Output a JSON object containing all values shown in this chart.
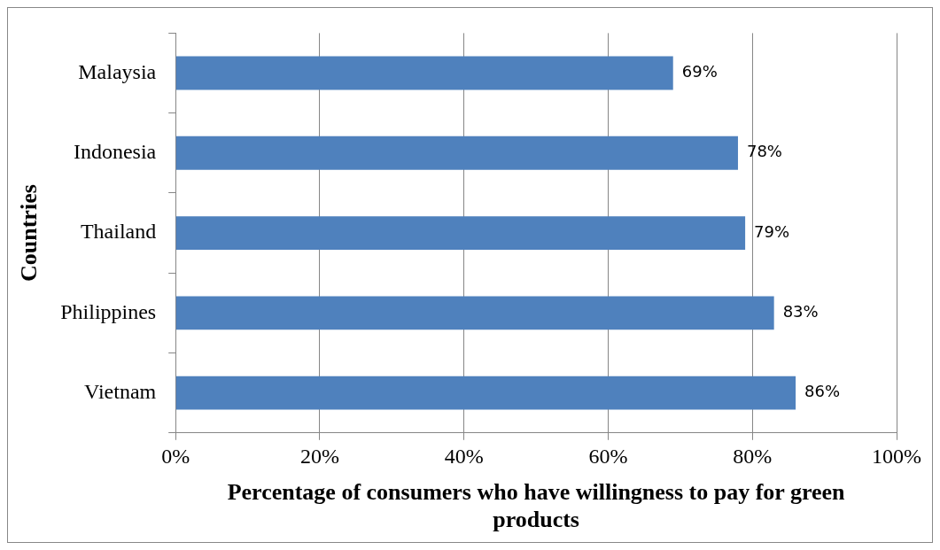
{
  "chart_data": {
    "type": "bar",
    "orientation": "horizontal",
    "categories": [
      "Malaysia",
      "Indonesia",
      "Thailand",
      "Philippines",
      "Vietnam"
    ],
    "values": [
      69,
      78,
      79,
      83,
      86
    ],
    "value_labels": [
      "69%",
      "78%",
      "79%",
      "83%",
      "86%"
    ],
    "color": "#4f81bd",
    "xlim": [
      0,
      100
    ],
    "xticks": [
      {
        "value": 0,
        "label": "0%"
      },
      {
        "value": 20,
        "label": "20%"
      },
      {
        "value": 40,
        "label": "40%"
      },
      {
        "value": 60,
        "label": "60%"
      },
      {
        "value": 80,
        "label": "80%"
      },
      {
        "value": 100,
        "label": "100%"
      }
    ],
    "xlabel": "Percentage of consumers who have willingness to pay for green products",
    "ylabel": "Countries",
    "grid": "x",
    "legend": false
  }
}
